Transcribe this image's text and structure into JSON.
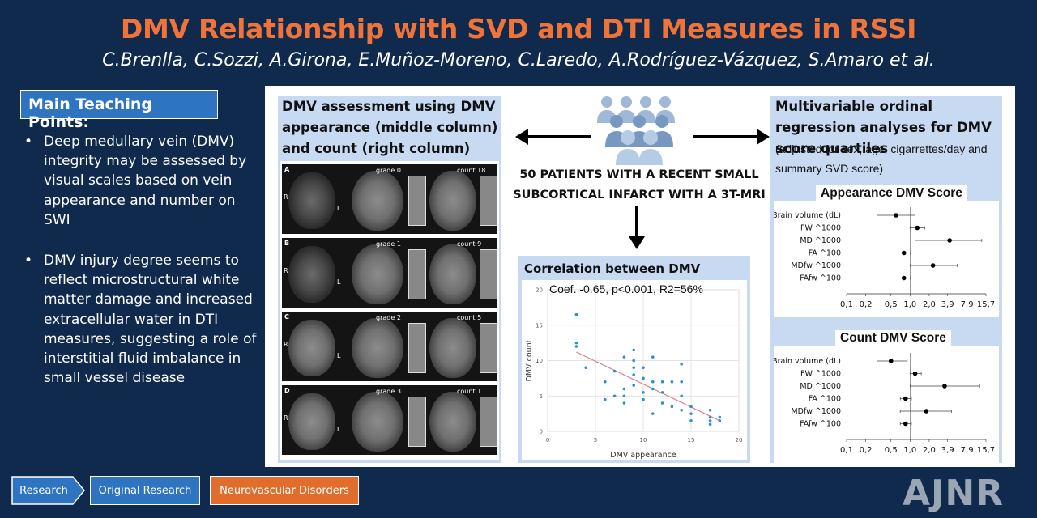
{
  "header": {
    "title": "DMV Relationship with SVD and DTI Measures in RSSI",
    "authors": "C.Brenlla, C.Sozzi, A.Girona, E.Muñoz-Moreno, C.Laredo, A.Rodríguez-Vázquez, S.Amaro  et al."
  },
  "teaching": {
    "header": "Main Teaching Points:",
    "points": [
      "Deep medullary vein (DMV) integrity may be assessed by visual scales based on vein appearance and number on SWI",
      "DMV injury degree seems to reflect microstructural white matter damage and increased extracellular water in DTI measures, suggesting a role of interstitial fluid imbalance in small vessel disease"
    ]
  },
  "left_panel": {
    "header": "DMV assessment using DMV appearance (middle column) and count (right column) scales",
    "rows": [
      {
        "letter": "A",
        "grade": "grade 0",
        "count": "count 18"
      },
      {
        "letter": "B",
        "grade": "grade 1",
        "count": "count 9"
      },
      {
        "letter": "C",
        "grade": "grade 2",
        "count": "count 5"
      },
      {
        "letter": "D",
        "grade": "grade 3",
        "count": "count 1"
      }
    ],
    "side_labels": [
      "R",
      "L"
    ]
  },
  "center": {
    "patients_line1": "50 PATIENTS WITH A RECENT SMALL",
    "patients_line2": "SUBCORTICAL INFARCT WITH A 3T-MRI",
    "corr_header": "Correlation between DMV scales:",
    "corr_stats": "Coef. -0.65, p<0.001, R2=56%",
    "icon": "people-group-icon"
  },
  "right_panel": {
    "header_bold": "Multivariable ordinal regression analyses for DMV score quartiles",
    "header_normal": "(adjusted for sex, age, cigarrettes/day and summary SVD score)",
    "appearance_title": "Appearance DMV Score",
    "count_title": "Count DMV Score"
  },
  "chart_data": [
    {
      "type": "scatter",
      "xlabel": "DMV appearance",
      "ylabel": "DMV count",
      "xlim": [
        0,
        20
      ],
      "ylim": [
        0,
        20
      ],
      "xticks": [
        0,
        5,
        10,
        15,
        20
      ],
      "yticks": [
        0,
        5,
        10,
        15,
        20
      ],
      "points": [
        [
          3,
          16.5
        ],
        [
          3,
          12.5
        ],
        [
          3,
          12
        ],
        [
          4,
          9
        ],
        [
          6,
          7
        ],
        [
          6,
          4.5
        ],
        [
          7,
          5
        ],
        [
          7,
          8.5
        ],
        [
          8,
          10.5
        ],
        [
          8,
          6
        ],
        [
          8,
          5
        ],
        [
          8,
          4
        ],
        [
          9,
          11.5
        ],
        [
          9,
          10
        ],
        [
          9,
          9
        ],
        [
          9,
          8
        ],
        [
          9,
          6.5
        ],
        [
          10,
          9
        ],
        [
          10,
          7.5
        ],
        [
          10,
          5.5
        ],
        [
          10,
          4.5
        ],
        [
          11,
          10.5
        ],
        [
          11,
          7
        ],
        [
          11,
          6
        ],
        [
          11,
          2.5
        ],
        [
          12,
          7
        ],
        [
          12,
          5.5
        ],
        [
          12,
          4
        ],
        [
          13,
          7
        ],
        [
          13,
          3.5
        ],
        [
          14,
          9.5
        ],
        [
          14,
          7
        ],
        [
          14,
          5
        ],
        [
          14,
          3
        ],
        [
          15,
          3.5
        ],
        [
          15,
          2.5
        ],
        [
          15,
          1.5
        ],
        [
          17,
          3
        ],
        [
          17,
          2
        ],
        [
          17,
          1.5
        ],
        [
          17,
          1
        ],
        [
          18,
          2
        ],
        [
          18,
          1.5
        ]
      ],
      "trend_line": [
        [
          3,
          11.2
        ],
        [
          18,
          1.5
        ]
      ],
      "grid": true
    },
    {
      "type": "forest",
      "title": "Appearance DMV Score",
      "x_scale": "log",
      "xticks": [
        "0,1",
        "0,2",
        "0,5",
        "1,0",
        "2,0",
        "3,9",
        "7,9",
        "15,7"
      ],
      "labels": [
        "Brain volume (dL)",
        "FW ^1000",
        "MD ^1000",
        "FA ^100",
        "MDfw ^1000",
        "FAfw ^100"
      ],
      "estimates": [
        0.6,
        1.3,
        4.2,
        0.8,
        2.3,
        0.8
      ],
      "ci_low": [
        0.3,
        1.0,
        1.2,
        0.65,
        1.0,
        0.65
      ],
      "ci_high": [
        1.2,
        1.7,
        13.5,
        1.0,
        5.5,
        1.0
      ]
    },
    {
      "type": "forest",
      "title": "Count DMV Score",
      "x_scale": "log",
      "xticks": [
        "0,1",
        "0,2",
        "0,5",
        "1,0",
        "2,0",
        "3,9",
        "7,9",
        "15,7"
      ],
      "labels": [
        "Brain volume (dL)",
        "FW ^1000",
        "MD ^1000",
        "FA ^100",
        "MDfw ^1000",
        "FAfw ^100"
      ],
      "estimates": [
        0.5,
        1.2,
        3.5,
        0.85,
        1.8,
        0.85
      ],
      "ci_low": [
        0.3,
        1.0,
        1.0,
        0.7,
        0.7,
        0.7
      ],
      "ci_high": [
        0.9,
        1.5,
        12.5,
        1.05,
        4.5,
        1.05
      ]
    }
  ],
  "footer": {
    "buttons": [
      "Research",
      "Original Research",
      "Neurovascular Disorders"
    ],
    "logo": "AJNR",
    "colors": {
      "research": "#2f74c0",
      "neuro": "#e06d2c",
      "bg": "#0f2a4d",
      "title": "#f0733a"
    }
  }
}
